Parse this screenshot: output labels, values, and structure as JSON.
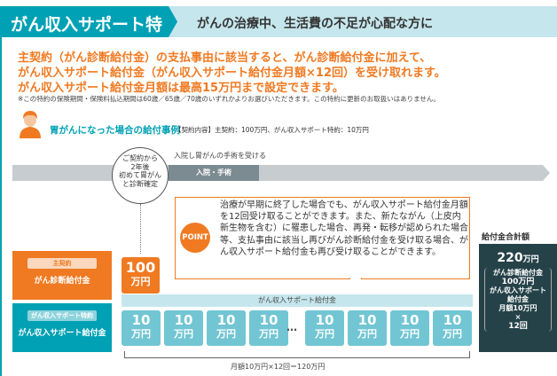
{
  "header": {
    "title": "がん収入サポート特約",
    "subtitle": "がんの治療中、生活費の不足が心配な方に",
    "color": "#00a1b4"
  },
  "lead": [
    "主契約（がん診断給付金）の支払事由に該当すると、がん診断給付金に加えて、",
    "がん収入サポート給付金（がん収入サポート給付金月額×12回）を受け取れます。",
    "がん収入サポート給付金月額は最高15万円まで設定できます。"
  ],
  "note": "※この特約の保険期間・保険料払込期間は60歳／65歳／70歳のいずれかよりお選びいただきます。この特約に更新のお取扱いはありません。",
  "case": {
    "title": "胃がんになった場合の給付事例",
    "detail": "【契約内容】主契約：100万円、がん収入サポート特約：10万円",
    "icon": "person-icon"
  },
  "timeline": {
    "label": "入院し胃がんの手術を受ける",
    "segment": "入院・手術",
    "circle": [
      "ご契約から",
      "2年後",
      "初めて胃がん",
      "と診断確定"
    ]
  },
  "point": {
    "badge": "POINT",
    "text": "治療が早期に終了した場合でも、がん収入サポート給付金月額を12回受け取ることができます。また、新たながん（上皮内新生物を含む）に罹患した場合、再発・転移が認められた場合等、支払事由に該当し再びがん診断給付金を受け取る場合、がん収入サポート給付金も再び受け取ることができます。"
  },
  "main_contract": {
    "tag": "主契約",
    "name": "がん診断給付金",
    "amount": "100",
    "unit": "万円"
  },
  "rider": {
    "tag": "がん収入サポート特約",
    "name": "がん収入サポート給付金",
    "bar_label": "がん収入サポート給付金",
    "tiles": [
      {
        "n": "10",
        "u": "万円"
      },
      {
        "n": "10",
        "u": "万円"
      },
      {
        "n": "10",
        "u": "万円"
      },
      {
        "n": "10",
        "u": "万円"
      },
      {
        "n": "10",
        "u": "万円"
      },
      {
        "n": "10",
        "u": "万円"
      },
      {
        "n": "10",
        "u": "万円"
      },
      {
        "n": "10",
        "u": "万円"
      }
    ],
    "ellipsis": "…",
    "sum": "月額10万円×12回＝120万円"
  },
  "total": {
    "title": "給付金合計額",
    "amount": "220",
    "unit": "万円",
    "l1": "がん診断給付金",
    "l2": "100万円",
    "l3": "がん収入サポート",
    "l4": "給付金",
    "l5": "月額10万円",
    "l6": "×",
    "l7": "12回"
  }
}
